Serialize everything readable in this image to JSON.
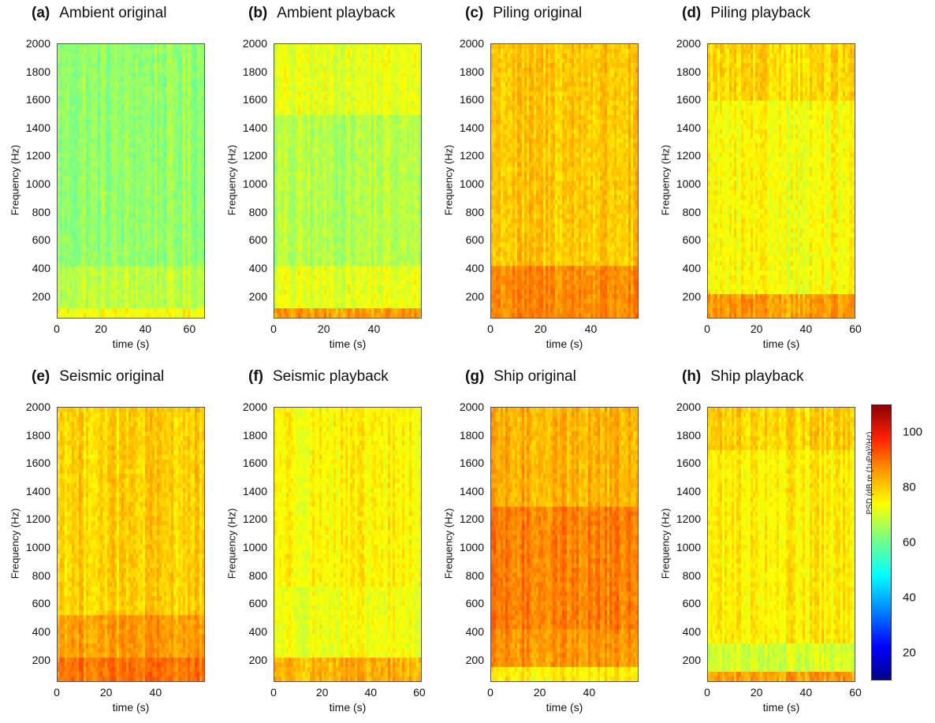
{
  "colors": {
    "axis": "#555555",
    "colormap": "jet"
  },
  "chart_data": [
    {
      "type": "heatmap",
      "panel_label": "(a)",
      "title": "Ambient original",
      "ylabel": "Frequency (Hz)",
      "xlabel": "time (s)",
      "xlim": [
        0,
        67
      ],
      "ylim": [
        40,
        2000
      ],
      "xticks": [
        0,
        20,
        40,
        60
      ],
      "yticks": [
        200,
        400,
        600,
        800,
        1000,
        1200,
        1400,
        1600,
        1800,
        2000
      ],
      "psd_band_db": [
        {
          "f_max": 120,
          "psd": 72
        },
        {
          "f_max": 400,
          "psd": 66
        },
        {
          "f_max": 2000,
          "psd": 62
        }
      ]
    },
    {
      "type": "heatmap",
      "panel_label": "(b)",
      "title": "Ambient playback",
      "ylabel": "Frequency (Hz)",
      "xlabel": "time (s)",
      "xlim": [
        0,
        59
      ],
      "ylim": [
        40,
        2000
      ],
      "xticks": [
        0,
        20,
        40
      ],
      "yticks": [
        200,
        400,
        600,
        800,
        1000,
        1200,
        1400,
        1600,
        1800,
        2000
      ],
      "psd_band_db": [
        {
          "f_max": 100,
          "psd": 82
        },
        {
          "f_max": 400,
          "psd": 70
        },
        {
          "f_max": 1500,
          "psd": 65
        },
        {
          "f_max": 2000,
          "psd": 70
        }
      ]
    },
    {
      "type": "heatmap",
      "panel_label": "(c)",
      "title": "Piling original",
      "ylabel": "Frequency (Hz)",
      "xlabel": "time (s)",
      "xlim": [
        0,
        59
      ],
      "ylim": [
        40,
        2000
      ],
      "xticks": [
        0,
        20,
        40
      ],
      "yticks": [
        200,
        400,
        600,
        800,
        1000,
        1200,
        1400,
        1600,
        1800,
        2000
      ],
      "psd_band_db": [
        {
          "f_max": 400,
          "psd": 84
        },
        {
          "f_max": 2000,
          "psd": 78
        }
      ]
    },
    {
      "type": "heatmap",
      "panel_label": "(d)",
      "title": "Piling playback",
      "ylabel": "Frequency (Hz)",
      "xlabel": "time (s)",
      "xlim": [
        0,
        60
      ],
      "ylim": [
        40,
        2000
      ],
      "xticks": [
        0,
        20,
        40,
        60
      ],
      "yticks": [
        200,
        400,
        600,
        800,
        1000,
        1200,
        1400,
        1600,
        1800,
        2000
      ],
      "psd_band_db": [
        {
          "f_max": 200,
          "psd": 82
        },
        {
          "f_max": 1600,
          "psd": 72
        },
        {
          "f_max": 2000,
          "psd": 76
        }
      ]
    },
    {
      "type": "heatmap",
      "panel_label": "(e)",
      "title": "Seismic original",
      "ylabel": "Frequency (Hz)",
      "xlabel": "time (s)",
      "xlim": [
        0,
        60
      ],
      "ylim": [
        40,
        2000
      ],
      "xticks": [
        0,
        20,
        40
      ],
      "yticks": [
        200,
        400,
        600,
        800,
        1000,
        1200,
        1400,
        1600,
        1800,
        2000
      ],
      "psd_band_db": [
        {
          "f_max": 200,
          "psd": 86
        },
        {
          "f_max": 500,
          "psd": 82
        },
        {
          "f_max": 2000,
          "psd": 77
        }
      ]
    },
    {
      "type": "heatmap",
      "panel_label": "(f)",
      "title": "Seismic playback",
      "ylabel": "Frequency (Hz)",
      "xlabel": "time (s)",
      "xlim": [
        0,
        61
      ],
      "ylim": [
        40,
        2000
      ],
      "xticks": [
        0,
        20,
        40,
        60
      ],
      "yticks": [
        200,
        400,
        600,
        800,
        1000,
        1200,
        1400,
        1600,
        1800,
        2000
      ],
      "psd_band_db": [
        {
          "f_max": 200,
          "psd": 80
        },
        {
          "f_max": 700,
          "psd": 71
        },
        {
          "f_max": 2000,
          "psd": 73
        }
      ]
    },
    {
      "type": "heatmap",
      "panel_label": "(g)",
      "title": "Ship original",
      "ylabel": "Frequency (Hz)",
      "xlabel": "time (s)",
      "xlim": [
        0,
        60
      ],
      "ylim": [
        40,
        2000
      ],
      "xticks": [
        0,
        20,
        40
      ],
      "yticks": [
        200,
        400,
        600,
        800,
        1000,
        1200,
        1400,
        1600,
        1800,
        2000
      ],
      "psd_band_db": [
        {
          "f_max": 150,
          "psd": 74
        },
        {
          "f_max": 400,
          "psd": 83
        },
        {
          "f_max": 1300,
          "psd": 85
        },
        {
          "f_max": 2000,
          "psd": 80
        }
      ]
    },
    {
      "type": "heatmap",
      "panel_label": "(h)",
      "title": "Ship playback",
      "ylabel": "Frequency (Hz)",
      "xlabel": "time (s)",
      "xlim": [
        0,
        60
      ],
      "ylim": [
        40,
        2000
      ],
      "xticks": [
        0,
        20,
        40,
        60
      ],
      "yticks": [
        200,
        400,
        600,
        800,
        1000,
        1200,
        1400,
        1600,
        1800,
        2000
      ],
      "psd_band_db": [
        {
          "f_max": 100,
          "psd": 82
        },
        {
          "f_max": 300,
          "psd": 68
        },
        {
          "f_max": 1700,
          "psd": 74
        },
        {
          "f_max": 2000,
          "psd": 77
        }
      ]
    }
  ],
  "colorbar": {
    "label": "PSD (dB re (1uPa)²/Hz)",
    "range": [
      10,
      110
    ],
    "ticks": [
      20,
      40,
      60,
      80,
      100
    ]
  }
}
